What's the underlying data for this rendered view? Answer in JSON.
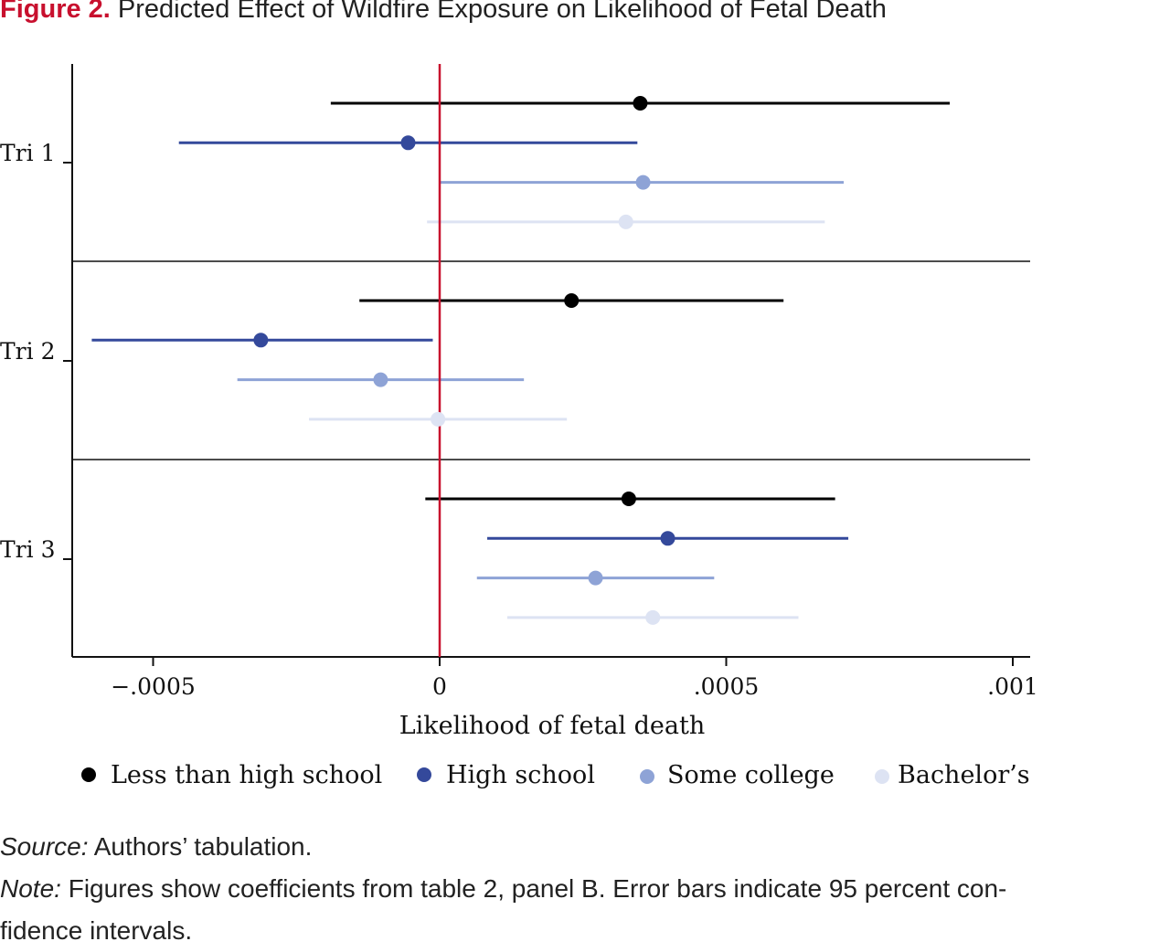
{
  "header": {
    "figure_label": "Figure 2.",
    "title": "Predicted Effect of Wildfire Exposure on Likelihood of Fetal Death"
  },
  "chart_data": {
    "type": "coefficient-plot",
    "xlabel": "Likelihood of fetal death",
    "xlim": [
      -0.00063,
      0.00103
    ],
    "xticks": [
      -0.0005,
      0,
      0.0005,
      0.001
    ],
    "xtick_labels": [
      "−.0005",
      "0",
      ".0005",
      ".001"
    ],
    "reference_line": {
      "x": 0,
      "color": "#c8102e"
    },
    "groups": [
      "Tri 1",
      "Tri 2",
      "Tri 3"
    ],
    "series": [
      {
        "name": "Less than high school",
        "color": "#000000",
        "points": [
          {
            "group": "Tri 1",
            "estimate": 0.00035,
            "ci": [
              -0.00019,
              0.00089
            ]
          },
          {
            "group": "Tri 2",
            "estimate": 0.00023,
            "ci": [
              -0.00014,
              0.0006
            ]
          },
          {
            "group": "Tri 3",
            "estimate": 0.00033,
            "ci": [
              -2.5e-05,
              0.00069
            ]
          }
        ]
      },
      {
        "name": "High school",
        "color": "#34499b",
        "points": [
          {
            "group": "Tri 1",
            "estimate": -5.5e-05,
            "ci": [
              -0.000455,
              0.000345
            ]
          },
          {
            "group": "Tri 2",
            "estimate": -0.000312,
            "ci": [
              -0.000607,
              -1.2e-05
            ]
          },
          {
            "group": "Tri 3",
            "estimate": 0.000398,
            "ci": [
              8.3e-05,
              0.000713
            ]
          }
        ]
      },
      {
        "name": "Some college",
        "color": "#8ea3d6",
        "points": [
          {
            "group": "Tri 1",
            "estimate": 0.000355,
            "ci": [
              0.0,
              0.000705
            ]
          },
          {
            "group": "Tri 2",
            "estimate": -0.000103,
            "ci": [
              -0.000353,
              0.000147
            ]
          },
          {
            "group": "Tri 3",
            "estimate": 0.000272,
            "ci": [
              6.5e-05,
              0.000479
            ]
          }
        ]
      },
      {
        "name": "Bachelor’s",
        "color": "#dde3f3",
        "points": [
          {
            "group": "Tri 1",
            "estimate": 0.000325,
            "ci": [
              -2.2e-05,
              0.000672
            ]
          },
          {
            "group": "Tri 2",
            "estimate": -3e-06,
            "ci": [
              -0.000228,
              0.000222
            ]
          },
          {
            "group": "Tri 3",
            "estimate": 0.000372,
            "ci": [
              0.000118,
              0.000626
            ]
          }
        ]
      }
    ],
    "legend_position": "bottom"
  },
  "footer": {
    "source_label": "Source:",
    "source_text": "Authors’ tabulation.",
    "note_label": "Note:",
    "note_text_line1": "Figures show coefficients from table 2, panel B. Error bars indicate 95 percent con-",
    "note_text_line2": "fidence intervals."
  }
}
